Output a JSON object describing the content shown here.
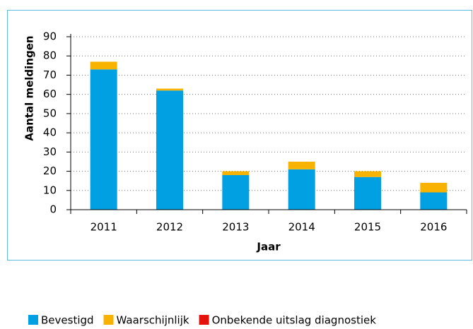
{
  "chart_data": {
    "type": "stacked_bar",
    "categories": [
      "2011",
      "2012",
      "2013",
      "2014",
      "2015",
      "2016"
    ],
    "series": [
      {
        "name": "Bevestigd",
        "color": "#00a0e2",
        "values": [
          73,
          62,
          18,
          21,
          17,
          9
        ]
      },
      {
        "name": "Waarschijnlijk",
        "color": "#f8b200",
        "values": [
          4,
          1,
          2,
          4,
          3,
          5
        ]
      },
      {
        "name": "Onbekende uitslag diagnostiek",
        "color": "#e3120b",
        "values": [
          0,
          0,
          0,
          0,
          0,
          0
        ]
      }
    ],
    "ylim": [
      0,
      90
    ],
    "yticks": [
      0,
      10,
      20,
      30,
      40,
      50,
      60,
      70,
      80,
      90
    ],
    "ylabel": "Aantal meldingen",
    "xlabel": "Jaar",
    "grid": true,
    "legend": "bottom"
  }
}
